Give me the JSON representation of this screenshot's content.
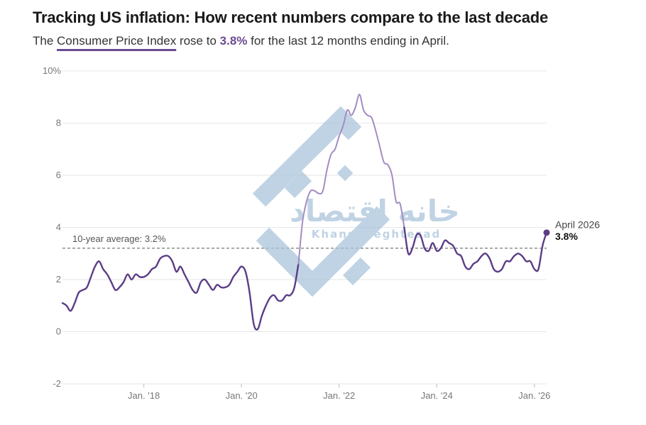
{
  "header": {
    "title": "Tracking US inflation: How recent numbers compare to the last decade",
    "subtitle_prefix": "The ",
    "subtitle_link": "Consumer Price Index",
    "subtitle_mid": " rose to ",
    "subtitle_value": "3.8%",
    "subtitle_suffix": " for the last 12 months ending in April."
  },
  "watermark": {
    "arabic": "خانه اقتصاد",
    "latin": "Khanehyeghtesad"
  },
  "colors": {
    "line_dark": "#5b3d86",
    "line_light": "#a38cc2",
    "accent": "#6b4b91",
    "grid": "#e6e6e6",
    "watermark": "#a9c3da"
  },
  "chart_data": {
    "type": "line",
    "title": "",
    "xlabel": "",
    "ylabel": "",
    "x_start": "2016-05",
    "x_end": "2026-04",
    "ylim": [
      -2,
      10
    ],
    "yticks": [
      -2,
      0,
      2,
      4,
      6,
      8,
      10
    ],
    "ytick_labels": [
      "-2",
      "0",
      "2",
      "4",
      "6",
      "8",
      "10%"
    ],
    "xtick_dates": [
      "2018-01",
      "2020-01",
      "2022-01",
      "2024-01",
      "2026-01"
    ],
    "xtick_labels": [
      "Jan. '18",
      "Jan. '20",
      "Jan. '22",
      "Jan. '24",
      "Jan. '26"
    ],
    "grid": true,
    "highlight_range": [
      "2021-04",
      "2023-05"
    ],
    "reference_line": {
      "value": 3.2,
      "label": "10-year average: 3.2%"
    },
    "end_annotation": {
      "label": "April 2026",
      "value_label": "3.8%"
    },
    "series": [
      {
        "name": "",
        "points": [
          [
            "2016-05",
            1.1
          ],
          [
            "2016-06",
            1.0
          ],
          [
            "2016-07",
            0.8
          ],
          [
            "2016-08",
            1.1
          ],
          [
            "2016-09",
            1.5
          ],
          [
            "2016-10",
            1.6
          ],
          [
            "2016-11",
            1.7
          ],
          [
            "2016-12",
            2.1
          ],
          [
            "2017-01",
            2.5
          ],
          [
            "2017-02",
            2.7
          ],
          [
            "2017-03",
            2.4
          ],
          [
            "2017-04",
            2.2
          ],
          [
            "2017-05",
            1.9
          ],
          [
            "2017-06",
            1.6
          ],
          [
            "2017-07",
            1.7
          ],
          [
            "2017-08",
            1.9
          ],
          [
            "2017-09",
            2.2
          ],
          [
            "2017-10",
            2.0
          ],
          [
            "2017-11",
            2.2
          ],
          [
            "2017-12",
            2.1
          ],
          [
            "2018-01",
            2.1
          ],
          [
            "2018-02",
            2.2
          ],
          [
            "2018-03",
            2.4
          ],
          [
            "2018-04",
            2.5
          ],
          [
            "2018-05",
            2.8
          ],
          [
            "2018-06",
            2.9
          ],
          [
            "2018-07",
            2.9
          ],
          [
            "2018-08",
            2.7
          ],
          [
            "2018-09",
            2.3
          ],
          [
            "2018-10",
            2.5
          ],
          [
            "2018-11",
            2.2
          ],
          [
            "2018-12",
            1.9
          ],
          [
            "2019-01",
            1.6
          ],
          [
            "2019-02",
            1.5
          ],
          [
            "2019-03",
            1.9
          ],
          [
            "2019-04",
            2.0
          ],
          [
            "2019-05",
            1.8
          ],
          [
            "2019-06",
            1.6
          ],
          [
            "2019-07",
            1.8
          ],
          [
            "2019-08",
            1.7
          ],
          [
            "2019-09",
            1.7
          ],
          [
            "2019-10",
            1.8
          ],
          [
            "2019-11",
            2.1
          ],
          [
            "2019-12",
            2.3
          ],
          [
            "2020-01",
            2.5
          ],
          [
            "2020-02",
            2.3
          ],
          [
            "2020-03",
            1.5
          ],
          [
            "2020-04",
            0.3
          ],
          [
            "2020-05",
            0.1
          ],
          [
            "2020-06",
            0.6
          ],
          [
            "2020-07",
            1.0
          ],
          [
            "2020-08",
            1.3
          ],
          [
            "2020-09",
            1.4
          ],
          [
            "2020-10",
            1.2
          ],
          [
            "2020-11",
            1.2
          ],
          [
            "2020-12",
            1.4
          ],
          [
            "2021-01",
            1.4
          ],
          [
            "2021-02",
            1.7
          ],
          [
            "2021-03",
            2.6
          ],
          [
            "2021-04",
            4.2
          ],
          [
            "2021-05",
            5.0
          ],
          [
            "2021-06",
            5.4
          ],
          [
            "2021-07",
            5.4
          ],
          [
            "2021-08",
            5.3
          ],
          [
            "2021-09",
            5.4
          ],
          [
            "2021-10",
            6.2
          ],
          [
            "2021-11",
            6.8
          ],
          [
            "2021-12",
            7.0
          ],
          [
            "2022-01",
            7.5
          ],
          [
            "2022-02",
            7.9
          ],
          [
            "2022-03",
            8.5
          ],
          [
            "2022-04",
            8.3
          ],
          [
            "2022-05",
            8.6
          ],
          [
            "2022-06",
            9.1
          ],
          [
            "2022-07",
            8.5
          ],
          [
            "2022-08",
            8.3
          ],
          [
            "2022-09",
            8.2
          ],
          [
            "2022-10",
            7.7
          ],
          [
            "2022-11",
            7.1
          ],
          [
            "2022-12",
            6.5
          ],
          [
            "2023-01",
            6.4
          ],
          [
            "2023-02",
            6.0
          ],
          [
            "2023-03",
            5.0
          ],
          [
            "2023-04",
            4.9
          ],
          [
            "2023-05",
            4.0
          ],
          [
            "2023-06",
            3.0
          ],
          [
            "2023-07",
            3.2
          ],
          [
            "2023-08",
            3.7
          ],
          [
            "2023-09",
            3.7
          ],
          [
            "2023-10",
            3.2
          ],
          [
            "2023-11",
            3.1
          ],
          [
            "2023-12",
            3.4
          ],
          [
            "2024-01",
            3.1
          ],
          [
            "2024-02",
            3.2
          ],
          [
            "2024-03",
            3.5
          ],
          [
            "2024-04",
            3.4
          ],
          [
            "2024-05",
            3.3
          ],
          [
            "2024-06",
            3.0
          ],
          [
            "2024-07",
            2.9
          ],
          [
            "2024-08",
            2.5
          ],
          [
            "2024-09",
            2.4
          ],
          [
            "2024-10",
            2.6
          ],
          [
            "2024-11",
            2.7
          ],
          [
            "2024-12",
            2.9
          ],
          [
            "2025-01",
            3.0
          ],
          [
            "2025-02",
            2.8
          ],
          [
            "2025-03",
            2.4
          ],
          [
            "2025-04",
            2.3
          ],
          [
            "2025-05",
            2.4
          ],
          [
            "2025-06",
            2.7
          ],
          [
            "2025-07",
            2.7
          ],
          [
            "2025-08",
            2.9
          ],
          [
            "2025-09",
            3.0
          ],
          [
            "2025-10",
            2.9
          ],
          [
            "2025-11",
            2.7
          ],
          [
            "2025-12",
            2.7
          ],
          [
            "2026-01",
            2.4
          ],
          [
            "2026-02",
            2.4
          ],
          [
            "2026-03",
            3.3
          ],
          [
            "2026-04",
            3.8
          ]
        ]
      }
    ]
  }
}
